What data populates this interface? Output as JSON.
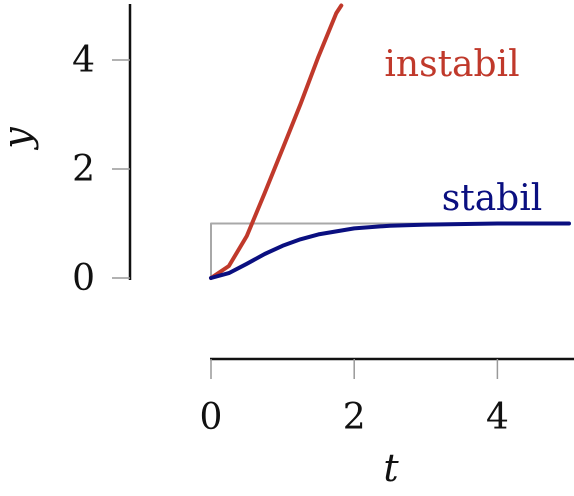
{
  "chart_data": {
    "type": "line",
    "title": "",
    "xlabel": "t",
    "ylabel": "y",
    "xlim": [
      0,
      5
    ],
    "ylim": [
      0,
      5
    ],
    "x_ticks": [
      0,
      2,
      4
    ],
    "y_ticks": [
      0,
      2,
      4
    ],
    "grid": false,
    "series": [
      {
        "name": "instabil",
        "color": "#c0392b",
        "x": [
          0,
          0.25,
          0.5,
          0.75,
          1.0,
          1.25,
          1.5,
          1.75,
          1.82
        ],
        "y": [
          0,
          0.22,
          0.77,
          1.56,
          2.37,
          3.19,
          4.06,
          4.86,
          5.0
        ]
      },
      {
        "name": "stabil",
        "color": "#0a0f80",
        "x": [
          0,
          0.25,
          0.5,
          0.75,
          1.0,
          1.25,
          1.5,
          2.0,
          2.5,
          3.0,
          4.0,
          5.0
        ],
        "y": [
          0,
          0.09,
          0.26,
          0.44,
          0.59,
          0.71,
          0.8,
          0.91,
          0.96,
          0.98,
          1.0,
          1.0
        ]
      },
      {
        "name": "",
        "color": "#a8a8a8",
        "x": [
          0,
          0,
          5
        ],
        "y": [
          0,
          1,
          1
        ]
      }
    ]
  }
}
